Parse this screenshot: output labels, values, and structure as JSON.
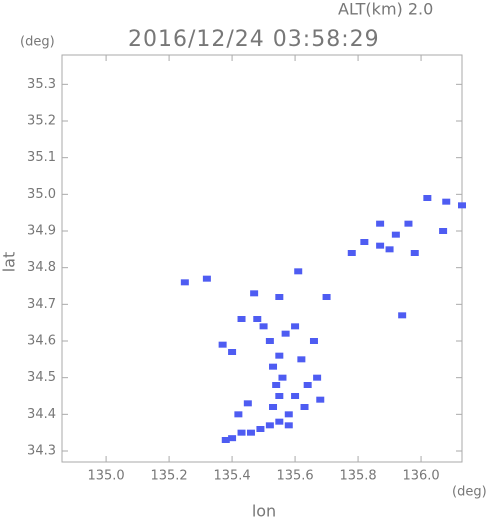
{
  "chart_data": {
    "type": "scatter",
    "annotation": "ALT(km) 2.0",
    "y_unit": "(deg)",
    "title": "2016/12/24 03:58:29",
    "y_label": "lat",
    "x_label": "lon",
    "x_unit": "(deg)",
    "color": "#4e5cf2",
    "x": [
      135.38,
      135.4,
      135.43,
      135.46,
      135.49,
      135.52,
      135.55,
      135.58,
      135.53,
      135.55,
      135.54,
      135.56,
      135.53,
      135.55,
      135.52,
      135.57,
      135.5,
      135.48,
      135.42,
      135.45,
      135.4,
      135.37,
      135.43,
      135.6,
      135.64,
      135.67,
      135.62,
      135.66,
      135.6,
      135.63,
      135.68,
      135.58,
      135.25,
      135.32,
      135.47,
      135.55,
      135.61,
      135.7,
      135.78,
      135.82,
      135.87,
      135.92,
      135.96,
      135.9,
      135.94,
      136.02,
      136.08,
      136.13,
      136.07,
      135.87,
      135.98
    ],
    "values": [
      34.33,
      34.335,
      34.35,
      34.35,
      34.36,
      34.37,
      34.38,
      34.37,
      34.42,
      34.45,
      34.48,
      34.5,
      34.53,
      34.56,
      34.6,
      34.62,
      34.64,
      34.66,
      34.4,
      34.43,
      34.57,
      34.59,
      34.66,
      34.45,
      34.48,
      34.5,
      34.55,
      34.6,
      34.64,
      34.42,
      34.44,
      34.4,
      34.76,
      34.77,
      34.73,
      34.72,
      34.79,
      34.72,
      34.84,
      34.87,
      34.86,
      34.89,
      34.92,
      34.85,
      34.67,
      34.99,
      34.98,
      34.97,
      34.9,
      34.92,
      34.84
    ],
    "xlim": [
      134.86,
      136.13
    ],
    "ylim": [
      34.27,
      35.38
    ],
    "xticks": [
      {
        "value": 135.0,
        "label": "135.0"
      },
      135.2,
      135.4,
      135.6,
      135.8,
      {
        "value": 136.0,
        "label": "136.0"
      }
    ],
    "yticks": [
      34.3,
      34.4,
      34.5,
      34.6,
      34.7,
      34.8,
      34.9,
      {
        "value": 35.0,
        "label": "35.0"
      },
      35.1,
      35.2,
      35.3
    ]
  }
}
